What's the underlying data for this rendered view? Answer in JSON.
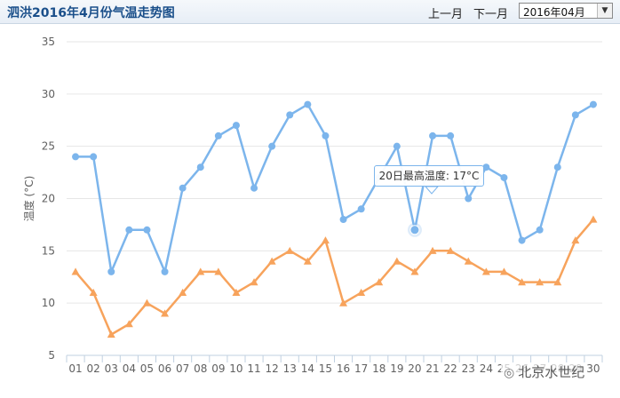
{
  "header": {
    "title": "泗洪2016年4月份气温走势图",
    "prev_label": "上一月",
    "next_label": "下一月",
    "month_select": "2016年04月"
  },
  "tooltip": {
    "text": "20日最高温度: 17°C"
  },
  "watermark": {
    "text": "北京水世纪"
  },
  "chart_data": {
    "type": "line",
    "ylabel": "温度 (°C)",
    "ylim": [
      5,
      35
    ],
    "yticks": [
      5,
      10,
      15,
      20,
      25,
      30,
      35
    ],
    "grid": true,
    "legend": "none",
    "categories": [
      "01",
      "02",
      "03",
      "04",
      "05",
      "06",
      "07",
      "08",
      "09",
      "10",
      "11",
      "12",
      "13",
      "14",
      "15",
      "16",
      "17",
      "18",
      "19",
      "20",
      "21",
      "22",
      "23",
      "24",
      "25",
      "26",
      "27",
      "28",
      "29",
      "30"
    ],
    "series": [
      {
        "color": "#7cb5ec",
        "marker": "circle",
        "values": [
          24,
          24,
          13,
          17,
          17,
          13,
          21,
          23,
          26,
          27,
          21,
          25,
          28,
          29,
          26,
          18,
          19,
          22,
          25,
          17,
          26,
          26,
          20,
          23,
          22,
          16,
          17,
          23,
          28,
          29
        ]
      },
      {
        "color": "#f7a35c",
        "marker": "triangle",
        "values": [
          13,
          11,
          7,
          8,
          10,
          9,
          11,
          13,
          13,
          11,
          12,
          14,
          15,
          14,
          16,
          10,
          11,
          12,
          14,
          13,
          15,
          15,
          14,
          13,
          13,
          12,
          12,
          12,
          16,
          18
        ]
      }
    ],
    "highlight": {
      "category": "20",
      "series": 0,
      "value": 17
    }
  }
}
